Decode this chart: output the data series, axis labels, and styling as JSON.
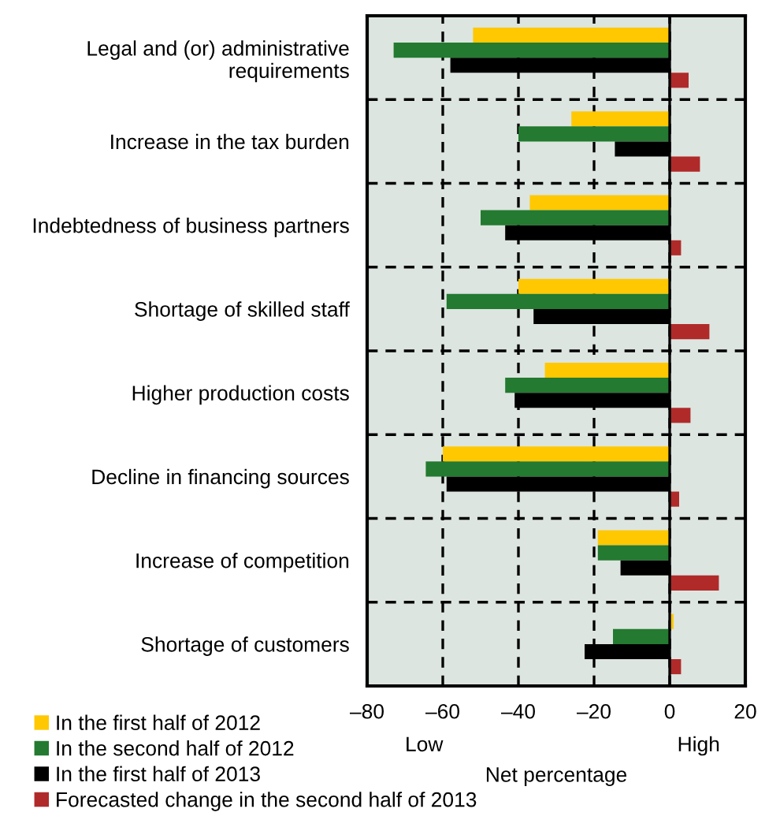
{
  "chart_data": {
    "type": "bar",
    "orientation": "horizontal",
    "categories": [
      "Legal and (or) administrative\nrequirements",
      "Increase in the tax burden",
      "Indebtedness of business partners",
      "Shortage of skilled staff",
      "Higher production costs",
      "Decline in financing sources",
      "Increase of competition",
      "Shortage of customers"
    ],
    "series": [
      {
        "name": "In the first half of 2012",
        "color": "#ffc800",
        "values": [
          -52,
          -26,
          -37,
          -40,
          -33,
          -60,
          -19,
          1
        ]
      },
      {
        "name": "In the second half of 2012",
        "color": "#237a30",
        "values": [
          -73,
          -40,
          -50,
          -59,
          -43.5,
          -64.5,
          -19,
          -15
        ]
      },
      {
        "name": "In the first half of 2013",
        "color": "#000000",
        "values": [
          -58,
          -14.5,
          -43.5,
          -36,
          -41,
          -59,
          -13,
          -22.5
        ]
      },
      {
        "name": "Forecasted change in the second half of 2013",
        "color": "#b02a2a",
        "values": [
          5,
          8,
          3,
          10.5,
          5.5,
          2.5,
          13,
          3
        ]
      }
    ],
    "xlim": [
      -80,
      20
    ],
    "xticks": [
      {
        "value": -80,
        "label": "–80"
      },
      {
        "value": -60,
        "label": "–60"
      },
      {
        "value": -40,
        "label": "–40"
      },
      {
        "value": -20,
        "label": "–20"
      },
      0,
      20
    ],
    "xlabel": "Net percentage",
    "annotations": [
      "Low",
      "High"
    ],
    "ref_lines": [
      {
        "axis": "x",
        "value": 0,
        "color": "#000000",
        "line_style": "solid"
      }
    ],
    "grid": true,
    "legend": "bottom left"
  }
}
